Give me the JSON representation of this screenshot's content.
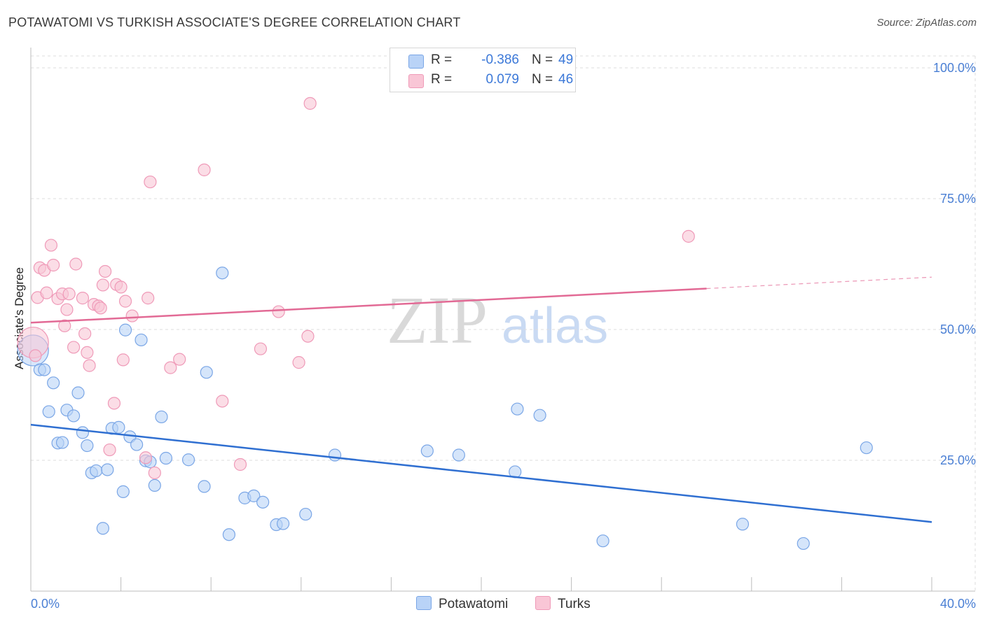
{
  "header": {
    "title": "POTAWATOMI VS TURKISH ASSOCIATE'S DEGREE CORRELATION CHART",
    "source": "Source: ZipAtlas.com"
  },
  "watermark": {
    "zip": "ZIP",
    "atlas": "atlas"
  },
  "legend": {
    "rows": [
      {
        "r_label": "R =",
        "r_value": "-0.386",
        "n_label": "N =",
        "n_value": "49",
        "color": "#b9d3f7"
      },
      {
        "r_label": "R =",
        "r_value": "0.079",
        "n_label": "N =",
        "n_value": "46",
        "color": "#f9c6d6"
      }
    ]
  },
  "bottom_legend": [
    {
      "label": "Potawatomi",
      "color": "#b9d3f7"
    },
    {
      "label": "Turks",
      "color": "#f9c6d6"
    }
  ],
  "colors": {
    "blue_fill": "#b9d3f7",
    "blue_stroke": "#7aa6e6",
    "blue_line": "#2f6fd1",
    "pink_fill": "#f9c6d6",
    "pink_stroke": "#ef9ab8",
    "pink_line": "#e26a95",
    "grid": "#dcdcdc",
    "axis_label": "#4a7fd4"
  },
  "chart_data": {
    "type": "scatter",
    "title": "POTAWATOMI VS TURKISH ASSOCIATE'S DEGREE CORRELATION CHART",
    "xlabel": "",
    "ylabel": "Associate's Degree",
    "xlim": [
      0,
      40
    ],
    "ylim": [
      0,
      100
    ],
    "x_tick_labels": [
      "0.0%",
      "40.0%"
    ],
    "y_ticks": [
      25,
      50,
      75,
      100
    ],
    "y_tick_labels": [
      "25.0%",
      "50.0%",
      "75.0%",
      "100.0%"
    ],
    "grid": true,
    "series": [
      {
        "name": "Potawatomi",
        "r": -0.386,
        "n": 49,
        "trend": {
          "x": [
            0,
            40
          ],
          "y": [
            31.8,
            13.2
          ],
          "dashed_from": null
        },
        "points": [
          {
            "x": 0.1,
            "y": 46.0,
            "big": true
          },
          {
            "x": 0.4,
            "y": 42.3
          },
          {
            "x": 0.6,
            "y": 42.3
          },
          {
            "x": 0.8,
            "y": 34.3
          },
          {
            "x": 1.0,
            "y": 39.8
          },
          {
            "x": 1.2,
            "y": 28.3
          },
          {
            "x": 1.4,
            "y": 28.4
          },
          {
            "x": 1.6,
            "y": 34.6
          },
          {
            "x": 1.9,
            "y": 33.5
          },
          {
            "x": 2.1,
            "y": 37.9
          },
          {
            "x": 2.3,
            "y": 30.3
          },
          {
            "x": 2.5,
            "y": 27.8
          },
          {
            "x": 2.7,
            "y": 22.6
          },
          {
            "x": 2.9,
            "y": 23.0
          },
          {
            "x": 3.2,
            "y": 12.0
          },
          {
            "x": 3.4,
            "y": 23.2
          },
          {
            "x": 3.6,
            "y": 31.1
          },
          {
            "x": 3.9,
            "y": 31.3
          },
          {
            "x": 4.1,
            "y": 19.0
          },
          {
            "x": 4.2,
            "y": 49.9
          },
          {
            "x": 4.4,
            "y": 29.5
          },
          {
            "x": 4.7,
            "y": 28.0
          },
          {
            "x": 4.9,
            "y": 48.0
          },
          {
            "x": 5.1,
            "y": 24.9
          },
          {
            "x": 5.3,
            "y": 24.7
          },
          {
            "x": 5.5,
            "y": 20.2
          },
          {
            "x": 5.8,
            "y": 33.3
          },
          {
            "x": 6.0,
            "y": 25.4
          },
          {
            "x": 7.0,
            "y": 25.1
          },
          {
            "x": 7.7,
            "y": 20.0
          },
          {
            "x": 7.8,
            "y": 41.8
          },
          {
            "x": 8.5,
            "y": 60.8
          },
          {
            "x": 8.8,
            "y": 10.8
          },
          {
            "x": 9.5,
            "y": 17.8
          },
          {
            "x": 9.9,
            "y": 18.2
          },
          {
            "x": 10.3,
            "y": 17.0
          },
          {
            "x": 10.9,
            "y": 12.7
          },
          {
            "x": 11.2,
            "y": 12.9
          },
          {
            "x": 12.2,
            "y": 14.7
          },
          {
            "x": 13.5,
            "y": 26.0
          },
          {
            "x": 17.6,
            "y": 26.8
          },
          {
            "x": 19.0,
            "y": 26.0
          },
          {
            "x": 21.5,
            "y": 22.8
          },
          {
            "x": 21.6,
            "y": 34.8
          },
          {
            "x": 22.6,
            "y": 33.6
          },
          {
            "x": 25.4,
            "y": 9.6
          },
          {
            "x": 31.6,
            "y": 12.8
          },
          {
            "x": 34.3,
            "y": 9.1
          },
          {
            "x": 37.1,
            "y": 27.4
          }
        ]
      },
      {
        "name": "Turks",
        "r": 0.079,
        "n": 46,
        "trend": {
          "x": [
            0,
            40
          ],
          "y": [
            51.3,
            60.0
          ],
          "dashed_from": 30.0
        },
        "points": [
          {
            "x": 0.1,
            "y": 47.5,
            "big": true
          },
          {
            "x": 0.3,
            "y": 56.1
          },
          {
            "x": 0.4,
            "y": 61.8
          },
          {
            "x": 0.6,
            "y": 61.3
          },
          {
            "x": 0.7,
            "y": 57.0
          },
          {
            "x": 0.9,
            "y": 66.1
          },
          {
            "x": 1.0,
            "y": 62.3
          },
          {
            "x": 1.2,
            "y": 55.9
          },
          {
            "x": 1.4,
            "y": 56.8
          },
          {
            "x": 1.5,
            "y": 50.7
          },
          {
            "x": 1.6,
            "y": 53.8
          },
          {
            "x": 1.7,
            "y": 56.8
          },
          {
            "x": 1.9,
            "y": 46.6
          },
          {
            "x": 2.0,
            "y": 62.5
          },
          {
            "x": 2.3,
            "y": 56.0
          },
          {
            "x": 2.4,
            "y": 49.2
          },
          {
            "x": 2.5,
            "y": 45.6
          },
          {
            "x": 2.6,
            "y": 43.1
          },
          {
            "x": 2.8,
            "y": 54.8
          },
          {
            "x": 3.0,
            "y": 54.5
          },
          {
            "x": 3.1,
            "y": 54.1
          },
          {
            "x": 3.2,
            "y": 58.5
          },
          {
            "x": 3.3,
            "y": 61.1
          },
          {
            "x": 3.5,
            "y": 27.0
          },
          {
            "x": 3.7,
            "y": 35.9
          },
          {
            "x": 3.8,
            "y": 58.6
          },
          {
            "x": 4.0,
            "y": 58.1
          },
          {
            "x": 4.1,
            "y": 44.2
          },
          {
            "x": 4.2,
            "y": 55.4
          },
          {
            "x": 4.5,
            "y": 52.6
          },
          {
            "x": 5.1,
            "y": 25.5
          },
          {
            "x": 5.2,
            "y": 56.0
          },
          {
            "x": 5.3,
            "y": 78.2
          },
          {
            "x": 5.5,
            "y": 22.6
          },
          {
            "x": 6.2,
            "y": 42.7
          },
          {
            "x": 6.6,
            "y": 44.3
          },
          {
            "x": 7.7,
            "y": 80.5
          },
          {
            "x": 8.5,
            "y": 36.3
          },
          {
            "x": 9.3,
            "y": 24.2
          },
          {
            "x": 10.2,
            "y": 46.3
          },
          {
            "x": 11.0,
            "y": 53.4
          },
          {
            "x": 11.9,
            "y": 43.7
          },
          {
            "x": 12.3,
            "y": 48.7
          },
          {
            "x": 12.4,
            "y": 93.2
          },
          {
            "x": 29.2,
            "y": 67.8
          },
          {
            "x": 0.2,
            "y": 45.0
          }
        ]
      }
    ]
  }
}
